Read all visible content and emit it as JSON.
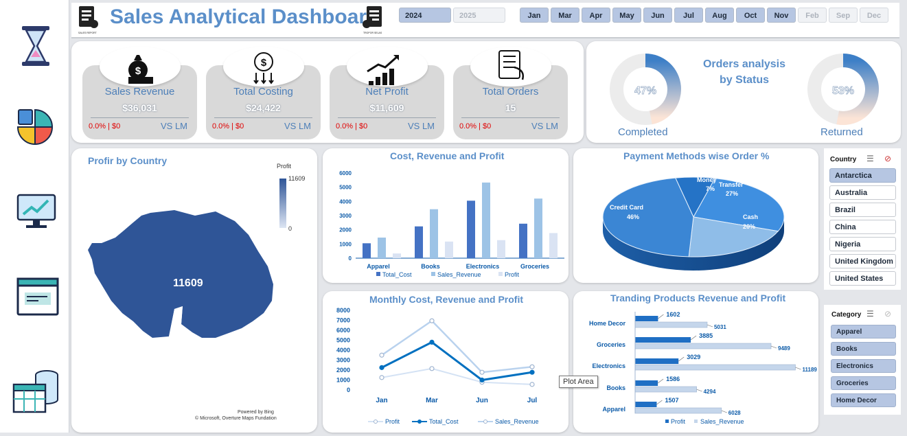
{
  "header": {
    "title": "Sales Analytical Dashboard",
    "logo_left_caption": "SALES REPORT",
    "logo_right_caption": "TROPOR SELAS",
    "years": [
      {
        "label": "2024",
        "active": true
      },
      {
        "label": "2025",
        "active": false
      }
    ],
    "months": [
      {
        "label": "Jan",
        "active": true
      },
      {
        "label": "Mar",
        "active": true
      },
      {
        "label": "Apr",
        "active": true
      },
      {
        "label": "May",
        "active": true
      },
      {
        "label": "Jun",
        "active": true
      },
      {
        "label": "Jul",
        "active": true
      },
      {
        "label": "Aug",
        "active": true
      },
      {
        "label": "Oct",
        "active": true
      },
      {
        "label": "Nov",
        "active": true
      },
      {
        "label": "Feb",
        "active": false
      },
      {
        "label": "Sep",
        "active": false
      },
      {
        "label": "Dec",
        "active": false
      }
    ]
  },
  "sidebar": {
    "icons": [
      "hourglass-icon",
      "pie-chart-icon",
      "monitor-chart-icon",
      "document-icon",
      "database-table-icon"
    ]
  },
  "kpis": [
    {
      "title": "Sales Revenue",
      "value": "$36,031",
      "delta": "0.0% | $0",
      "vs": "VS LM",
      "icon": "money-bag-icon"
    },
    {
      "title": "Total Costing",
      "value": "$24,422",
      "delta": "0.0% | $0",
      "vs": "VS LM",
      "icon": "coin-cost-icon"
    },
    {
      "title": "Net  Profit",
      "value": "$11,609",
      "delta": "0.0% | $0",
      "vs": "VS LM",
      "icon": "growth-chart-icon"
    },
    {
      "title": "Total Orders",
      "value": "15",
      "delta": "0.0% | $0",
      "vs": "VS LM",
      "icon": "orders-icon"
    }
  ],
  "orders_status": {
    "title_line1": "Orders analysis",
    "title_line2": "by Status",
    "completed": {
      "label": "Completed",
      "pct_text": "47%",
      "fraction": 0.47
    },
    "returned": {
      "label": "Returned",
      "pct_text": "53%",
      "fraction": 0.53
    }
  },
  "map": {
    "title": "Profir by Country",
    "legend_title": "Profit",
    "legend_max": "11609",
    "legend_min": "0",
    "value_label": "11609",
    "credit1": "Powered by Bing",
    "credit2": "© Microsoft, Overture Maps Fundation"
  },
  "country_slicer": {
    "title": "Country",
    "items": [
      {
        "label": "Antarctica",
        "selected": true
      },
      {
        "label": "Australia",
        "selected": false
      },
      {
        "label": "Brazil",
        "selected": false
      },
      {
        "label": "China",
        "selected": false
      },
      {
        "label": "Nigeria",
        "selected": false
      },
      {
        "label": "United Kingdom",
        "selected": false
      },
      {
        "label": "United States",
        "selected": false
      }
    ]
  },
  "category_slicer": {
    "title": "Category",
    "items": [
      "Apparel",
      "Books",
      "Electronics",
      "Groceries",
      "Home Decor"
    ]
  },
  "tooltip": "Plot Area",
  "colors": {
    "accent": "#5b8fc9",
    "cost": "#4472c4",
    "revenue": "#9dc3e6",
    "profit": "#dae3f3",
    "map_fill": "#2f5597",
    "line_cost": "#0070c0"
  },
  "chart_data": [
    {
      "id": "cost_revenue_profit",
      "type": "bar",
      "title": "Cost, Revenue and Profit",
      "categories": [
        "Apparel",
        "Books",
        "Electronics",
        "Groceries"
      ],
      "series": [
        {
          "name": "Total_Cost",
          "values": [
            1050,
            2240,
            4050,
            2430
          ]
        },
        {
          "name": "Sales_Revenue",
          "values": [
            1450,
            3450,
            5330,
            4200
          ]
        },
        {
          "name": "Profit",
          "values": [
            330,
            1170,
            1270,
            1770
          ]
        }
      ],
      "yticks": [
        "0",
        "1000",
        "2000",
        "3000",
        "4000",
        "5000",
        "6000"
      ],
      "ylim": [
        0,
        6000
      ]
    },
    {
      "id": "payment_methods",
      "type": "pie",
      "title": "Payment Methods wise Order %",
      "slices": [
        {
          "label": "Credit Card",
          "pct": "46%",
          "value": 46
        },
        {
          "label": "Mobile Money",
          "pct": "7%",
          "value": 7
        },
        {
          "label": "Bank Transfer",
          "pct": "27%",
          "value": 27
        },
        {
          "label": "Cash",
          "pct": "20%",
          "value": 20
        }
      ]
    },
    {
      "id": "monthly",
      "type": "line",
      "title": "Monthly Cost, Revenue and Profit",
      "categories": [
        "Jan",
        "Mar",
        "Jun",
        "Jul"
      ],
      "series": [
        {
          "name": "Profit",
          "values": [
            1250,
            2150,
            780,
            560
          ]
        },
        {
          "name": "Total_Cost",
          "values": [
            2250,
            4800,
            1000,
            1780
          ]
        },
        {
          "name": "Sales_Revenue",
          "values": [
            3500,
            6950,
            1780,
            2330
          ]
        }
      ],
      "yticks": [
        "0",
        "1000",
        "2000",
        "3000",
        "4000",
        "5000",
        "6000",
        "7000",
        "8000"
      ],
      "ylim": [
        0,
        8000
      ]
    },
    {
      "id": "trending_products",
      "type": "bar",
      "orientation": "horizontal",
      "title": "Tranding Products Revenue and Profit",
      "categories": [
        "Home Decor",
        "Groceries",
        "Electronics",
        "Books",
        "Apparel"
      ],
      "series": [
        {
          "name": "Profit",
          "values": [
            1602,
            3885,
            3029,
            1586,
            1507
          ]
        },
        {
          "name": "Sales_Revenue",
          "values": [
            5031,
            9489,
            11189,
            4294,
            6028
          ]
        }
      ],
      "xlim": [
        0,
        11500
      ]
    }
  ]
}
